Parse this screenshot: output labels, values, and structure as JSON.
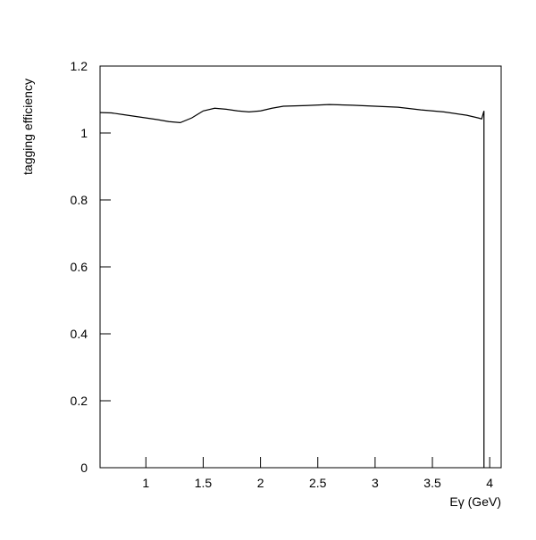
{
  "chart_data": {
    "type": "line",
    "y_label": "tagging efficiency",
    "x_label": "Eγ (GeV)",
    "x": [
      0.6,
      0.7,
      0.8,
      0.9,
      1.0,
      1.1,
      1.2,
      1.3,
      1.4,
      1.5,
      1.6,
      1.7,
      1.8,
      1.9,
      2.0,
      2.1,
      2.2,
      2.4,
      2.6,
      2.8,
      3.0,
      3.2,
      3.4,
      3.6,
      3.8,
      3.9,
      3.93,
      3.95,
      3.95
    ],
    "values": [
      1.061,
      1.06,
      1.055,
      1.05,
      1.045,
      1.04,
      1.034,
      1.031,
      1.045,
      1.066,
      1.074,
      1.071,
      1.066,
      1.063,
      1.066,
      1.074,
      1.08,
      1.082,
      1.085,
      1.083,
      1.08,
      1.077,
      1.069,
      1.063,
      1.053,
      1.045,
      1.042,
      1.066,
      0
    ],
    "color": "#000000",
    "xlim": [
      0.6,
      4.1
    ],
    "ylim": [
      0,
      1.2
    ],
    "xticks": [
      1,
      1.5,
      2,
      2.5,
      3,
      3.5,
      4
    ],
    "yticks": [
      0,
      0.2,
      0.4,
      0.6,
      0.8,
      1,
      1.2
    ]
  }
}
